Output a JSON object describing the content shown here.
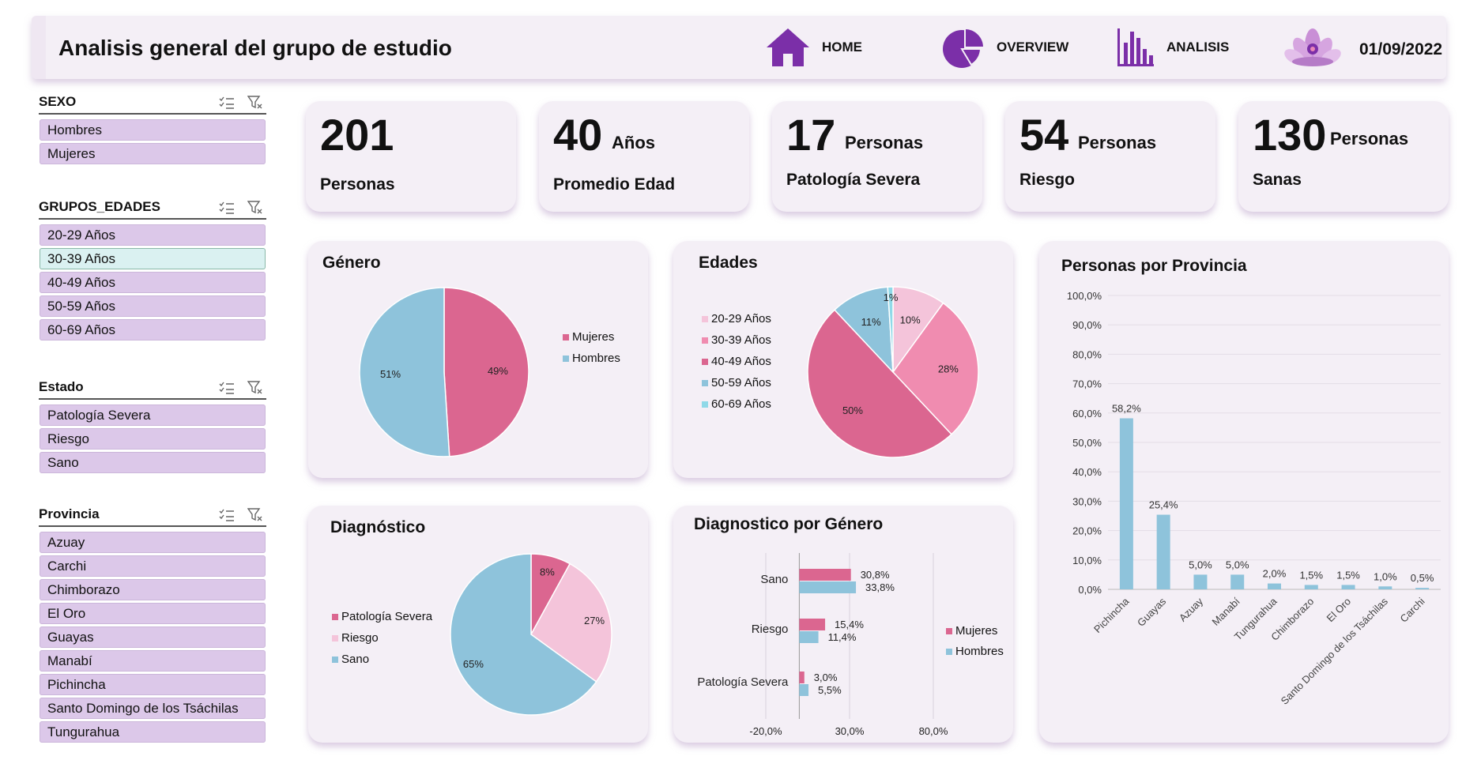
{
  "header": {
    "title": "Analisis general del grupo de estudio",
    "nav": [
      {
        "label": "HOME",
        "icon": "home-icon"
      },
      {
        "label": "OVERVIEW",
        "icon": "pie-chart-icon"
      },
      {
        "label": "ANALISIS",
        "icon": "bar-chart-icon"
      }
    ],
    "date": "01/09/2022",
    "logo_icon": "lotus-icon"
  },
  "colors": {
    "accent": "#7b2fa8",
    "pink": "#db6690",
    "blue": "#8ec3db",
    "light_pink": "#f4c4da",
    "mid_pink": "#f08cb0",
    "teal": "#8fd9e8",
    "slicer_item": "#dcc8e9",
    "card": "#f4eff6"
  },
  "slicers": [
    {
      "title": "SEXO",
      "items": [
        "Hombres",
        "Mujeres"
      ],
      "selected": []
    },
    {
      "title": "GRUPOS_EDADES",
      "items": [
        "20-29 Años",
        "30-39 Años",
        "40-49 Años",
        "50-59 Años",
        "60-69 Años"
      ],
      "selected": [
        1
      ]
    },
    {
      "title": "Estado",
      "items": [
        "Patología Severa",
        "Riesgo",
        "Sano"
      ],
      "selected": []
    },
    {
      "title": "Provincia",
      "items": [
        "Azuay",
        "Carchi",
        "Chimborazo",
        "El Oro",
        "Guayas",
        "Manabí",
        "Pichincha",
        "Santo Domingo de los Tsáchilas",
        "Tungurahua"
      ],
      "selected": []
    }
  ],
  "kpis": [
    {
      "value": "201",
      "unit": "",
      "label": "Personas"
    },
    {
      "value": "40",
      "unit": "Años",
      "label": "Promedio Edad"
    },
    {
      "value": "17",
      "unit": "Personas",
      "label": "Patología Severa"
    },
    {
      "value": "54",
      "unit": "Personas",
      "label": "Riesgo"
    },
    {
      "value": "130",
      "unit": "Personas",
      "label": "Sanas"
    }
  ],
  "chart_data": [
    {
      "id": "genero",
      "type": "pie",
      "title": "Género",
      "categories": [
        "Mujeres",
        "Hombres"
      ],
      "values": [
        49,
        51
      ],
      "labels": [
        "49%",
        "51%"
      ],
      "colors": [
        "#db6690",
        "#8ec3db"
      ],
      "legend": "right"
    },
    {
      "id": "edades",
      "type": "pie",
      "title": "Edades",
      "categories": [
        "20-29 Años",
        "30-39 Años",
        "40-49 Años",
        "50-59 Años",
        "60-69 Años"
      ],
      "values": [
        10,
        28,
        50,
        11,
        1
      ],
      "labels": [
        "10%",
        "28%",
        "50%",
        "11%",
        "1%"
      ],
      "colors": [
        "#f4c4da",
        "#f08cb0",
        "#db6690",
        "#8ec3db",
        "#8fd9e8"
      ],
      "legend": "left"
    },
    {
      "id": "diagnostico",
      "type": "pie",
      "title": "Diagnóstico",
      "categories": [
        "Patología Severa",
        "Riesgo",
        "Sano"
      ],
      "values": [
        8,
        27,
        65
      ],
      "labels": [
        "8%",
        "27%",
        "65%"
      ],
      "colors": [
        "#db6690",
        "#f4c4da",
        "#8ec3db"
      ],
      "legend": "left"
    },
    {
      "id": "diag_genero",
      "type": "bar",
      "orientation": "horizontal",
      "title": "Diagnostico por Género",
      "categories": [
        "Sano",
        "Riesgo",
        "Patología Severa"
      ],
      "series": [
        {
          "name": "Mujeres",
          "values": [
            30.8,
            15.4,
            3.0
          ],
          "labels": [
            "30,8%",
            "15,4%",
            "3,0%"
          ],
          "color": "#db6690"
        },
        {
          "name": "Hombres",
          "values": [
            33.8,
            11.4,
            5.5
          ],
          "labels": [
            "33,8%",
            "11,4%",
            "5,5%"
          ],
          "color": "#8ec3db"
        }
      ],
      "xlim": [
        -20,
        80
      ],
      "xticks": [
        "-20,0%",
        "30,0%",
        "80,0%"
      ],
      "legend": "right"
    },
    {
      "id": "provincia",
      "type": "bar",
      "title": "Personas por Provincia",
      "categories": [
        "Pichincha",
        "Guayas",
        "Azuay",
        "Manabí",
        "Tungurahua",
        "Chimborazo",
        "El Oro",
        "Santo Domingo de los Tsáchilas",
        "Carchi"
      ],
      "values": [
        58.2,
        25.4,
        5.0,
        5.0,
        2.0,
        1.5,
        1.5,
        1.0,
        0.5
      ],
      "labels": [
        "58,2%",
        "25,4%",
        "5,0%",
        "5,0%",
        "2,0%",
        "1,5%",
        "1,5%",
        "1,0%",
        "0,5%"
      ],
      "ylim": [
        0,
        100
      ],
      "yticks": [
        "0,0%",
        "10,0%",
        "20,0%",
        "30,0%",
        "40,0%",
        "50,0%",
        "60,0%",
        "70,0%",
        "80,0%",
        "90,0%",
        "100,0%"
      ],
      "color": "#8ec3db",
      "grid": true
    }
  ]
}
